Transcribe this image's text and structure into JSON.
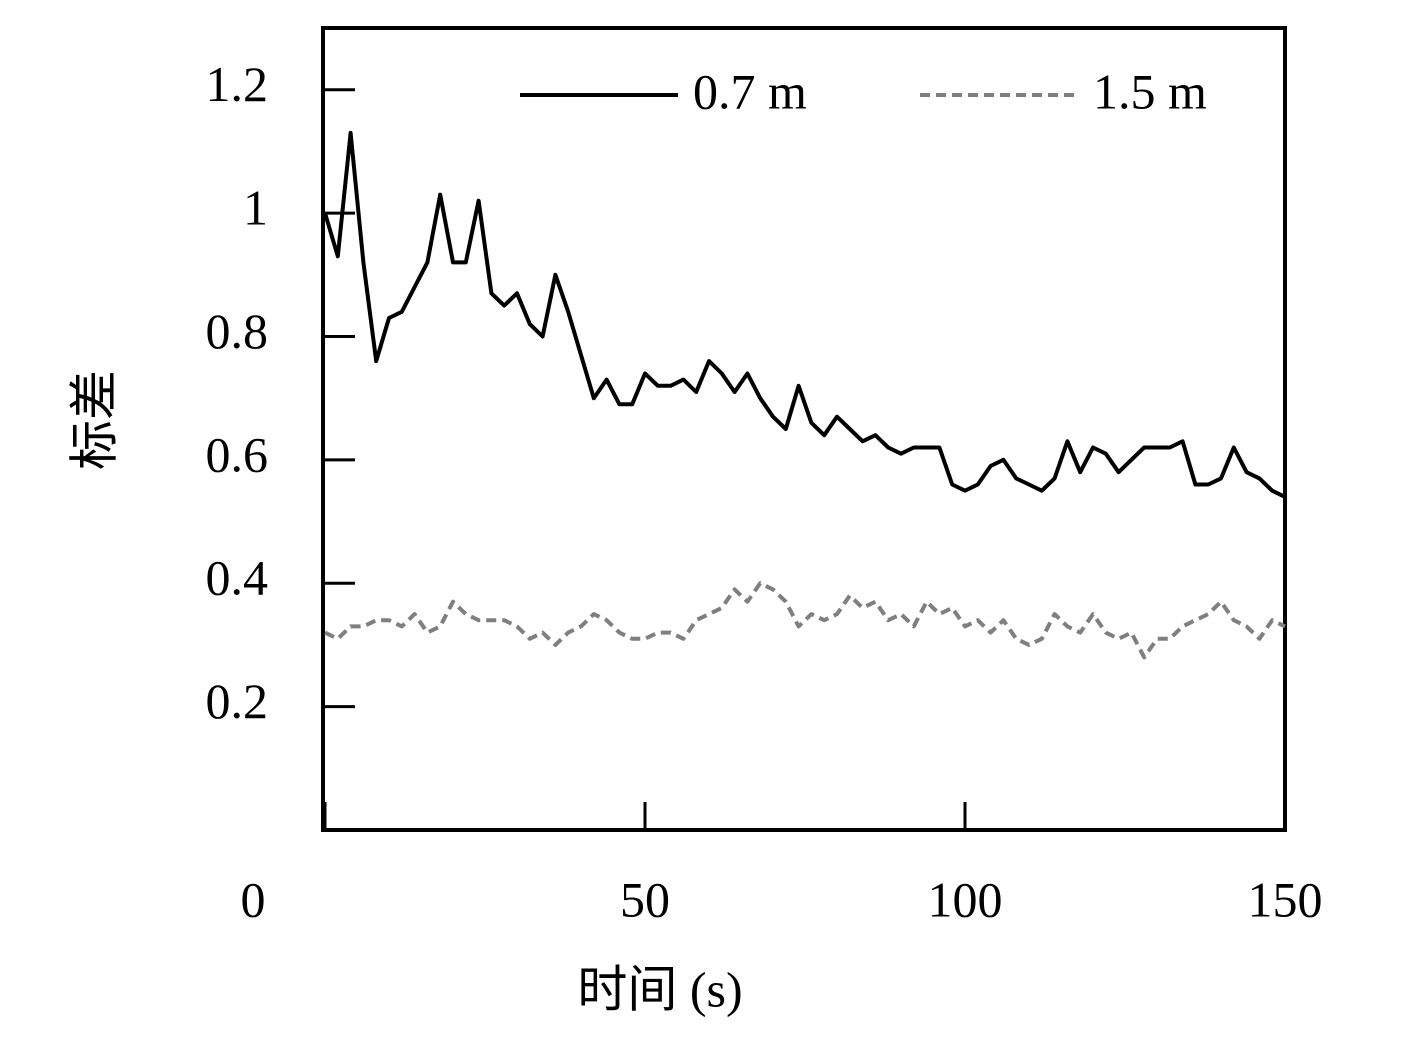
{
  "chart_data": {
    "type": "line",
    "xlabel": "时间 (s)",
    "ylabel": "标差",
    "xlim": [
      0,
      150
    ],
    "xticks": [
      0,
      50,
      100,
      150
    ],
    "ylim": [
      0,
      1.3
    ],
    "yticks": [
      0.2,
      0.4,
      0.6,
      0.8,
      1.0,
      1.2
    ],
    "legend": "upper right",
    "x": [
      0,
      2,
      4,
      6,
      8,
      10,
      12,
      14,
      16,
      18,
      20,
      22,
      24,
      26,
      28,
      30,
      32,
      34,
      36,
      38,
      40,
      42,
      44,
      46,
      48,
      50,
      52,
      54,
      56,
      58,
      60,
      62,
      64,
      66,
      68,
      70,
      72,
      74,
      76,
      78,
      80,
      82,
      84,
      86,
      88,
      90,
      92,
      94,
      96,
      98,
      100,
      102,
      104,
      106,
      108,
      110,
      112,
      114,
      116,
      118,
      120,
      122,
      124,
      126,
      128,
      130,
      132,
      134,
      136,
      138,
      140,
      142,
      144,
      146,
      148,
      150
    ],
    "series": [
      {
        "name": "0.7 m",
        "color": "#000000",
        "dash": false,
        "values": [
          1.0,
          0.93,
          1.13,
          0.92,
          0.76,
          0.83,
          0.84,
          0.88,
          0.92,
          1.03,
          0.92,
          0.92,
          1.02,
          0.87,
          0.85,
          0.87,
          0.82,
          0.8,
          0.9,
          0.84,
          0.77,
          0.7,
          0.73,
          0.69,
          0.69,
          0.74,
          0.72,
          0.72,
          0.73,
          0.71,
          0.76,
          0.74,
          0.71,
          0.74,
          0.7,
          0.67,
          0.65,
          0.72,
          0.66,
          0.64,
          0.67,
          0.65,
          0.63,
          0.64,
          0.62,
          0.61,
          0.62,
          0.62,
          0.62,
          0.56,
          0.55,
          0.56,
          0.59,
          0.6,
          0.57,
          0.56,
          0.55,
          0.57,
          0.63,
          0.58,
          0.62,
          0.61,
          0.58,
          0.6,
          0.62,
          0.62,
          0.62,
          0.63,
          0.56,
          0.56,
          0.57,
          0.62,
          0.58,
          0.57,
          0.55,
          0.54
        ]
      },
      {
        "name": "1.5 m",
        "color": "#7f7f7f",
        "dash": true,
        "values": [
          0.32,
          0.31,
          0.33,
          0.33,
          0.34,
          0.34,
          0.33,
          0.35,
          0.32,
          0.33,
          0.37,
          0.35,
          0.34,
          0.34,
          0.34,
          0.33,
          0.31,
          0.32,
          0.3,
          0.32,
          0.33,
          0.35,
          0.34,
          0.32,
          0.31,
          0.31,
          0.32,
          0.32,
          0.31,
          0.34,
          0.35,
          0.36,
          0.39,
          0.37,
          0.4,
          0.39,
          0.37,
          0.33,
          0.35,
          0.34,
          0.35,
          0.38,
          0.36,
          0.37,
          0.34,
          0.35,
          0.33,
          0.37,
          0.35,
          0.36,
          0.33,
          0.34,
          0.32,
          0.34,
          0.31,
          0.3,
          0.31,
          0.35,
          0.33,
          0.32,
          0.35,
          0.32,
          0.31,
          0.32,
          0.28,
          0.31,
          0.31,
          0.33,
          0.34,
          0.35,
          0.37,
          0.34,
          0.33,
          0.31,
          0.34,
          0.33
        ]
      }
    ]
  }
}
